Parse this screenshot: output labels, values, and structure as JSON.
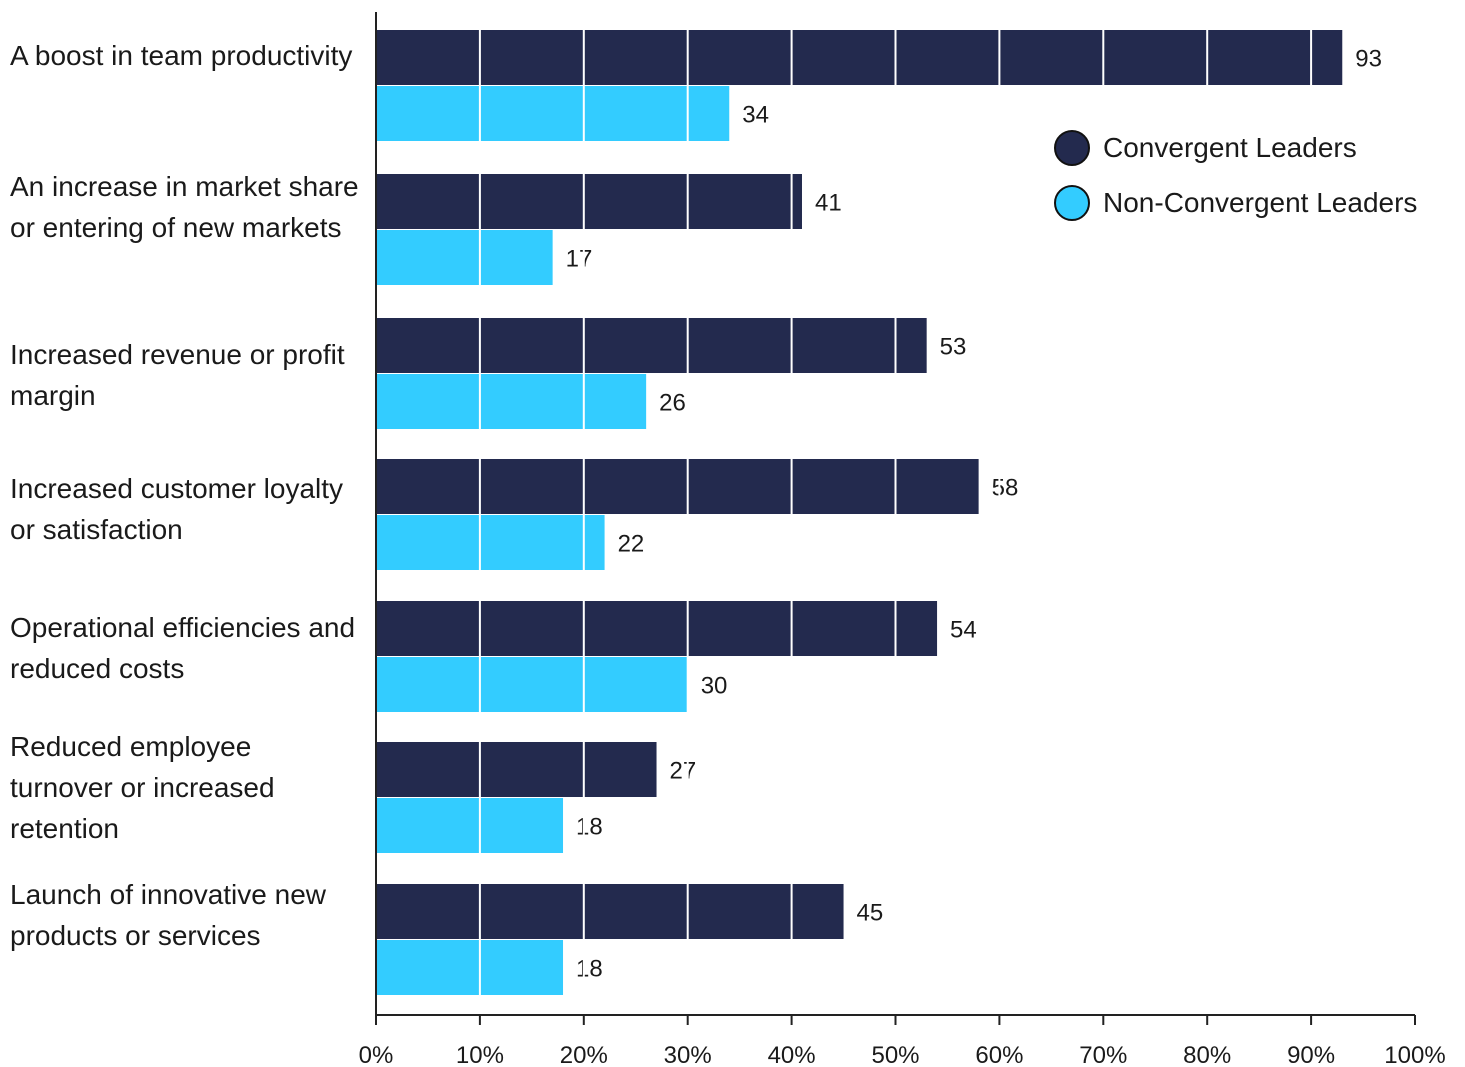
{
  "chart_data": {
    "type": "bar",
    "orientation": "horizontal",
    "title": "",
    "xlabel": "",
    "ylabel": "",
    "categories": [
      "A boost in team productivity",
      "An increase in market share or entering of new markets",
      "Increased revenue or profit margin",
      "Increased customer loyalty or satisfaction",
      "Operational efficiencies and reduced costs",
      "Reduced employee turnover or increased retention",
      "Launch of innovative new products or services"
    ],
    "series": [
      {
        "name": "Convergent Leaders",
        "color": "#232a4e",
        "values": [
          93,
          41,
          53,
          58,
          54,
          27,
          45
        ]
      },
      {
        "name": "Non-Convergent Leaders",
        "color": "#33ccff",
        "values": [
          34,
          17,
          26,
          22,
          30,
          18,
          18
        ]
      }
    ],
    "xlim": [
      0,
      100
    ],
    "xticks": [
      "0%",
      "10%",
      "20%",
      "30%",
      "40%",
      "50%",
      "60%",
      "70%",
      "80%",
      "90%",
      "100%"
    ],
    "xtick_values": [
      0,
      10,
      20,
      30,
      40,
      50,
      60,
      70,
      80,
      90,
      100
    ],
    "grid": true,
    "legend_position": "top-right",
    "data_labels": true
  }
}
